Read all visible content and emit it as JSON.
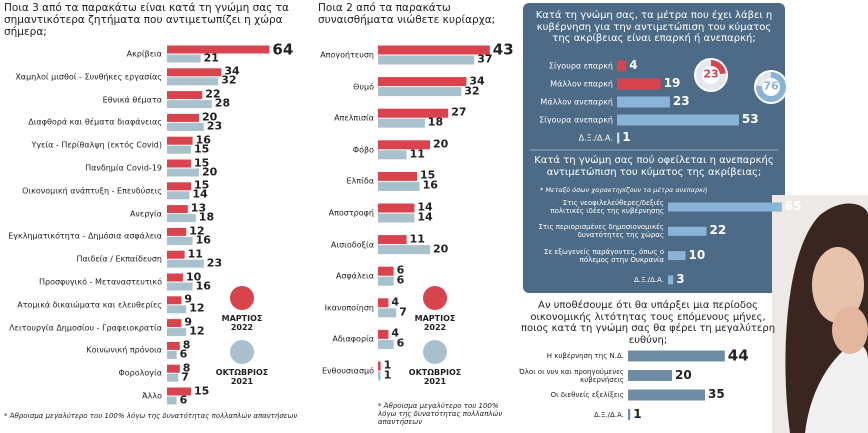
{
  "chart_data": [
    {
      "type": "bar",
      "orientation": "horizontal",
      "title": "Ποια 3 από τα παρακάτω είναι κατά τη γνώμη σας τα σημαντικότερα ζητήματα που αντιμετωπίζει η χώρα σήμερα;",
      "categories": [
        "Ακρίβεια",
        "Χαμηλοί μισθοί - Συνθήκες εργασίας",
        "Εθνικά θέματα",
        "Διαφθορά και θέματα διαφάνειας",
        "Υγεία - Περίθαλψη (εκτός Covid)",
        "Πανδημία Covid-19",
        "Οικονομική ανάπτυξη - Επενδύσεις",
        "Ανεργία",
        "Εγκληματικότητα - Δημόσια ασφάλεια",
        "Παιδεία / Εκπαίδευση",
        "Προσφυγικό - Μεταναστευτικό",
        "Ατομικά δικαιώματα και ελευθερίες",
        "Λειτουργία Δημοσίου - Γραφειοκρατία",
        "Κοινωνική πρόνοια",
        "Φορολογία",
        "Άλλο"
      ],
      "series": [
        {
          "name": "ΜΑΡΤΙΟΣ 2022",
          "color": "#d8434d",
          "values": [
            64,
            34,
            22,
            20,
            16,
            15,
            15,
            13,
            12,
            11,
            10,
            9,
            9,
            8,
            8,
            15
          ]
        },
        {
          "name": "ΟΚΤΩΒΡΙΟΣ 2021",
          "color": "#a9c1cc",
          "values": [
            21,
            32,
            28,
            23,
            15,
            20,
            14,
            18,
            16,
            23,
            16,
            12,
            12,
            6,
            7,
            6
          ]
        }
      ],
      "note": "* Άθροισμα μεγαλύτερο του 100% λόγω της δυνατότητας πολλαπλών απαντήσεων"
    },
    {
      "type": "bar",
      "orientation": "horizontal",
      "title": "Ποια 2 από τα παρακάτω συναισθήματα νιώθετε κυρίαρχα;",
      "categories": [
        "Απογοήτευση",
        "Θυμό",
        "Απελπισία",
        "Φόβο",
        "Ελπίδα",
        "Αποστροφή",
        "Αισιοδοξία",
        "Ασφάλεια",
        "Ικανοποίηση",
        "Αδιαφορία",
        "Ενθουσιασμό"
      ],
      "series": [
        {
          "name": "ΜΑΡΤΙΟΣ 2022",
          "color": "#d8434d",
          "values": [
            43,
            34,
            27,
            20,
            15,
            14,
            11,
            6,
            4,
            4,
            1
          ]
        },
        {
          "name": "ΟΚΤΩΒΡΙΟΣ 2021",
          "color": "#a9c1cc",
          "values": [
            37,
            32,
            18,
            11,
            16,
            14,
            20,
            6,
            7,
            6,
            1
          ]
        }
      ],
      "note": "* Άθροισμα μεγαλύτερο του 100% λόγω της δυνατότητας πολλαπλών απαντήσεων"
    },
    {
      "type": "bar",
      "orientation": "horizontal",
      "title": "Κατά τη γνώμη σας, τα μέτρα που έχει λάβει η κυβέρνηση για την αντιμετώπιση του κύματος της ακρίβειας είναι επαρκή ή ανεπαρκή;",
      "categories": [
        "Σίγουρα επαρκή",
        "Μάλλον επαρκή",
        "Μάλλον ανεπαρκή",
        "Σίγουρα ανεπαρκή",
        "Δ.Ξ./Δ.Α."
      ],
      "values": [
        4,
        19,
        23,
        53,
        1
      ],
      "colors": [
        "#d8434d",
        "#d8434d",
        "#8ab4d6",
        "#8ab4d6",
        "#c9d6e0"
      ],
      "totals": [
        {
          "value": 23,
          "color": "#d8434d"
        },
        {
          "value": 76,
          "color": "#8ab4d6"
        }
      ]
    },
    {
      "type": "bar",
      "orientation": "horizontal",
      "title": "Κατά τη γνώμη σας πού οφείλεται η ανεπαρκής αντιμετώπιση του κύματος της ακρίβειας;",
      "note": "* Μεταξύ όσων χαρακτηρίζουν τα μέτρα ανεπαρκή",
      "categories": [
        "Στις νεοφιλελεύθερες/δεξιές πολιτικές ιδέες της κυβέρνησης",
        "Στις περιορισμένες δημοσιονομικές δυνατότητες της χώρας",
        "Σε εξωγενείς παράγοντες, όπως ο πόλεμος στην Ουκρανία",
        "Δ.Ξ./Δ.Α."
      ],
      "values": [
        65,
        22,
        10,
        3
      ],
      "color": "#8ab4d6"
    },
    {
      "type": "bar",
      "orientation": "horizontal",
      "title": "Αν υποθέσουμε ότι θα υπάρξει μια περίοδος οικονομικής λιτότητας τους επόμενους μήνες, ποιος κατά τη γνώμη σας θα φέρει τη μεγαλύτερη ευθύνη;",
      "categories": [
        "Η κυβέρνηση της Ν.Δ.",
        "Όλοι οι νυν και προηγούμενες κυβερνήσεις",
        "Οι διεθνείς εξελίξεις",
        "Δ.Ξ./Δ.Α."
      ],
      "values": [
        44,
        20,
        35,
        1
      ],
      "color": "#6f8ca5"
    }
  ]
}
